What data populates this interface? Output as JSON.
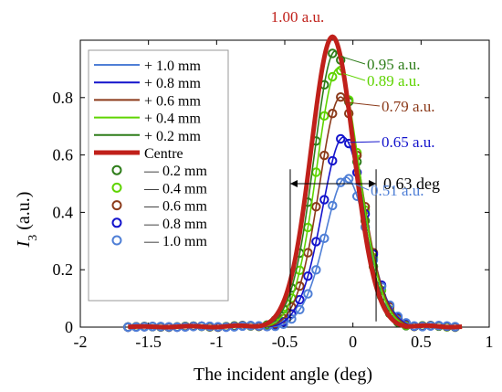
{
  "chart_data": {
    "type": "line",
    "xlabel": "The incident angle (deg)",
    "ylabel_main": "I",
    "ylabel_sub": "3",
    "ylabel_unit": " (a.u.)",
    "xlim": [
      -2,
      1
    ],
    "ylim": [
      0,
      1
    ],
    "xticks": [
      -2,
      -1.5,
      -1,
      -0.5,
      0,
      0.5,
      1
    ],
    "xtick_labels": [
      "-2",
      "-1.5",
      "-1",
      "-0.5",
      "0",
      "0.5",
      "1"
    ],
    "yticks": [
      0,
      0.2,
      0.4,
      0.6,
      0.8
    ],
    "ytick_labels": [
      "0",
      "0.2",
      "0.4",
      "0.6",
      "0.8"
    ],
    "grid": false,
    "legend_position": "top-left",
    "series": [
      {
        "name": "+ 1.0 mm",
        "style": "line",
        "color": "#4f7fd6",
        "peak": 0.51,
        "center": -0.05,
        "width": 0.16
      },
      {
        "name": "+ 0.8 mm",
        "style": "line",
        "color": "#1414cc",
        "peak": 0.65,
        "center": -0.07,
        "width": 0.16
      },
      {
        "name": "+ 0.6 mm",
        "style": "line",
        "color": "#8b3a1a",
        "peak": 0.79,
        "center": -0.09,
        "width": 0.16
      },
      {
        "name": "+ 0.4 mm",
        "style": "line",
        "color": "#5fd400",
        "peak": 0.89,
        "center": -0.11,
        "width": 0.16
      },
      {
        "name": "+ 0.2 mm",
        "style": "line",
        "color": "#2e7d1a",
        "peak": 0.95,
        "center": -0.13,
        "width": 0.16
      },
      {
        "name": "Centre",
        "style": "line",
        "color": "#c0201a",
        "peak": 1.0,
        "center": -0.15,
        "width": 0.16
      },
      {
        "name": "— 0.2 mm",
        "style": "marker",
        "color": "#2e7d1a",
        "peak": 0.95,
        "center": -0.13,
        "width": 0.16
      },
      {
        "name": "— 0.4 mm",
        "style": "marker",
        "color": "#5fd400",
        "peak": 0.89,
        "center": -0.11,
        "width": 0.16
      },
      {
        "name": "— 0.6 mm",
        "style": "marker",
        "color": "#8b3a1a",
        "peak": 0.79,
        "center": -0.09,
        "width": 0.16
      },
      {
        "name": "— 0.8 mm",
        "style": "marker",
        "color": "#1414cc",
        "peak": 0.65,
        "center": -0.07,
        "width": 0.16
      },
      {
        "name": "— 1.0 mm",
        "style": "marker",
        "color": "#4f7fd6",
        "peak": 0.51,
        "center": -0.05,
        "width": 0.16
      }
    ],
    "x_range": [
      -1.65,
      0.8
    ],
    "marker_step": 0.06,
    "annotations": [
      {
        "text": "1.00 a.u.",
        "color": "#c0201a",
        "x": -0.15,
        "y": 1.0
      },
      {
        "text": "0.95 a.u.",
        "color": "#2e7d1a",
        "x": -0.13,
        "y": 0.95
      },
      {
        "text": "0.89 a.u.",
        "color": "#5fd400",
        "x": -0.11,
        "y": 0.89
      },
      {
        "text": "0.79 a.u.",
        "color": "#8b3a1a",
        "x": -0.09,
        "y": 0.79
      },
      {
        "text": "0.65 a.u.",
        "color": "#1414cc",
        "x": -0.07,
        "y": 0.65
      },
      {
        "text": "0.51 a.u.",
        "color": "#4f7fd6",
        "x": -0.05,
        "y": 0.51
      }
    ],
    "fwhm": {
      "text": "0.63 deg",
      "x_left": -0.46,
      "x_right": 0.17,
      "y": 0.5
    }
  }
}
